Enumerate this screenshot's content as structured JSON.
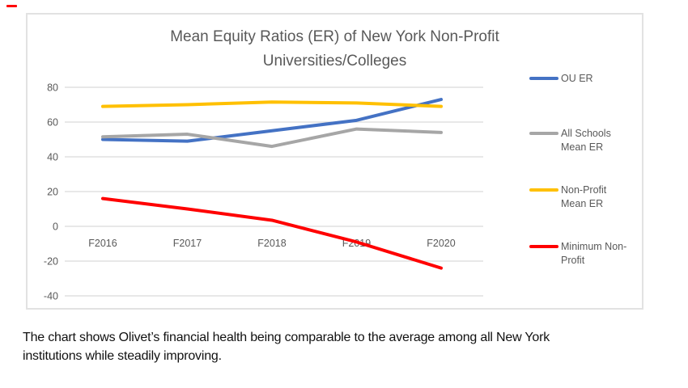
{
  "chart_data": {
    "type": "line",
    "title": "Mean Equity Ratios (ER) of New York Non-Profit Universities/Colleges",
    "title_lines": [
      "Mean Equity Ratios (ER) of New York Non-Profit",
      "Universities/Colleges"
    ],
    "categories": [
      "F2016",
      "F2017",
      "F2018",
      "F2019",
      "F2020"
    ],
    "series": [
      {
        "name": "OU ER",
        "legend_lines": [
          "OU ER"
        ],
        "color": "#4472C4",
        "values": [
          50,
          49,
          55,
          61,
          73
        ]
      },
      {
        "name": "All Schools Mean ER",
        "legend_lines": [
          "All Schools",
          "Mean ER"
        ],
        "color": "#A6A6A6",
        "values": [
          51.5,
          53,
          46,
          56,
          54
        ]
      },
      {
        "name": "Non-Profit Mean ER",
        "legend_lines": [
          "Non-Profit",
          "Mean ER"
        ],
        "color": "#FFC000",
        "values": [
          69,
          70,
          71.5,
          71,
          69
        ]
      },
      {
        "name": "Minimum Non-Profit",
        "legend_lines": [
          "Minimum Non-",
          "Profit"
        ],
        "color": "#FF0000",
        "values": [
          16,
          10,
          3.5,
          -9,
          -24
        ]
      }
    ],
    "y_ticks": [
      80,
      60,
      40,
      20,
      0,
      -20,
      -40
    ],
    "ylim": [
      -40,
      80
    ],
    "grid": true,
    "legend_position": "right",
    "colors": {
      "axis_text": "#595959",
      "gridline": "#D9D9D9",
      "chart_border": "#E2E2E2",
      "title_text": "#595959"
    }
  },
  "caption": {
    "lines": [
      "The chart shows Olivet’s financial health being comparable to the average among all New York",
      "institutions while steadily improving."
    ]
  }
}
